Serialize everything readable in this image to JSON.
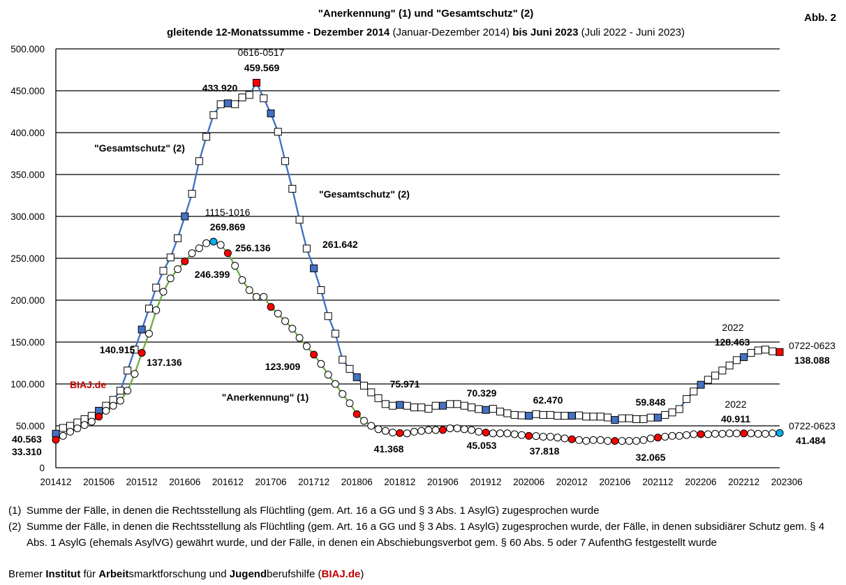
{
  "title_line1": "\"Anerkennung\" (1) und \"Gesamtschutz\" (2)",
  "title_line2_parts": [
    {
      "text": "gleitende 12-Monatssumme - Dezember 2014 ",
      "bold": true
    },
    {
      "text": "(Januar-Dezember 2014)",
      "bold": false
    },
    {
      "text": " bis Juni 2023 ",
      "bold": true
    },
    {
      "text": "(Juli 2022 - Juni 2023)",
      "bold": false
    }
  ],
  "figure_label": "Abb. 2",
  "brand_label": "BIAJ.de",
  "colors": {
    "gesamt_line": "#4472c4",
    "anerk_line": "#70ad47",
    "marker_blue": "#4472c4",
    "marker_red": "#ff0000",
    "marker_cyan": "#00b0f0",
    "brand_red": "#c00000"
  },
  "chart_data": {
    "type": "line",
    "ylim": [
      0,
      500000
    ],
    "ytick_labels": [
      "0",
      "50.000",
      "100.000",
      "150.000",
      "200.000",
      "250.000",
      "300.000",
      "350.000",
      "400.000",
      "450.000",
      "500.000"
    ],
    "x_tick_labels": [
      "201412",
      "201506",
      "201512",
      "201606",
      "201612",
      "201706",
      "201712",
      "201806",
      "201812",
      "201906",
      "201912",
      "202006",
      "202012",
      "202106",
      "202112",
      "202206",
      "202212",
      "202306"
    ],
    "x_start": "201412",
    "x_end": "202306",
    "series": [
      {
        "name": "\"Gesamtschutz\" (2)",
        "marker": "square",
        "values": [
          40563,
          47500,
          50000,
          54000,
          58000,
          62000,
          68000,
          74000,
          81000,
          92000,
          116000,
          140915,
          165000,
          190000,
          215000,
          235000,
          251000,
          274000,
          300000,
          327000,
          366000,
          395000,
          421000,
          433920,
          435000,
          434000,
          442000,
          445000,
          459569,
          441000,
          423000,
          401000,
          366000,
          333000,
          296000,
          261642,
          238000,
          212000,
          181000,
          160000,
          129000,
          118000,
          108000,
          98000,
          90000,
          83000,
          75971,
          74000,
          75000,
          74000,
          72000,
          72000,
          70329,
          74000,
          74000,
          76000,
          76000,
          74000,
          72000,
          70000,
          69000,
          70329,
          67000,
          65000,
          63000,
          62470,
          62000,
          64000,
          63000,
          63000,
          62000,
          62000,
          62000,
          62470,
          61000,
          61000,
          61000,
          60000,
          57000,
          59000,
          59000,
          58000,
          58000,
          59848,
          59848,
          63000,
          66000,
          70000,
          82000,
          91000,
          99000,
          105000,
          110000,
          116000,
          122000,
          128463,
          132000,
          137000,
          140000,
          141000,
          139000,
          138088
        ]
      },
      {
        "name": "\"Anerkennung\" (1)",
        "marker": "circle",
        "values": [
          33310,
          38000,
          43000,
          47000,
          51000,
          55000,
          61000,
          68000,
          74000,
          80000,
          92000,
          112000,
          137136,
          160000,
          188000,
          210000,
          226000,
          237000,
          246399,
          256000,
          262000,
          268000,
          269869,
          266000,
          256136,
          241000,
          224000,
          212000,
          204000,
          204000,
          192000,
          184000,
          175000,
          166000,
          155000,
          145000,
          135000,
          123909,
          111000,
          100000,
          88000,
          77000,
          64000,
          56000,
          50000,
          46000,
          44000,
          42000,
          41368,
          41000,
          43000,
          44000,
          45000,
          45000,
          45053,
          47000,
          47000,
          46000,
          45000,
          43000,
          42000,
          41000,
          41000,
          41000,
          40000,
          39000,
          38000,
          37818,
          37000,
          37000,
          36000,
          35000,
          34000,
          33000,
          32065,
          33000,
          33000,
          32000,
          32000,
          32000,
          32000,
          32065,
          33000,
          35000,
          36000,
          37000,
          38000,
          38000,
          39000,
          40000,
          40000,
          40000,
          40500,
          40500,
          41000,
          40911,
          41000,
          41000,
          40500,
          40500,
          41000,
          41484
        ]
      }
    ],
    "annotations": [
      {
        "text": "0616-0517",
        "bold": false
      },
      {
        "text": "459.569",
        "bold": true
      },
      {
        "text": "433.920",
        "bold": true
      },
      {
        "text": "\"Gesamtschutz\" (2)",
        "bold": true
      },
      {
        "text": "\"Gesamtschutz\" (2)",
        "bold": true
      },
      {
        "text": "1115-1016",
        "bold": false
      },
      {
        "text": "269.869",
        "bold": true
      },
      {
        "text": "256.136",
        "bold": true
      },
      {
        "text": "261.642",
        "bold": true
      },
      {
        "text": "246.399",
        "bold": true
      },
      {
        "text": "140.915",
        "bold": true
      },
      {
        "text": "137.136",
        "bold": true
      },
      {
        "text": "123.909",
        "bold": true
      },
      {
        "text": "\"Anerkennung\" (1)",
        "bold": true
      },
      {
        "text": "75.971",
        "bold": true
      },
      {
        "text": "70.329",
        "bold": true
      },
      {
        "text": "62.470",
        "bold": true
      },
      {
        "text": "59.848",
        "bold": true
      },
      {
        "text": "41.368",
        "bold": true
      },
      {
        "text": "45.053",
        "bold": true
      },
      {
        "text": "37.818",
        "bold": true
      },
      {
        "text": "32.065",
        "bold": true
      },
      {
        "text": "2022",
        "bold": false
      },
      {
        "text": "128.463",
        "bold": true
      },
      {
        "text": "2022",
        "bold": false
      },
      {
        "text": "40.911",
        "bold": true
      },
      {
        "text": "0722-0623",
        "bold": false
      },
      {
        "text": "138.088",
        "bold": true
      },
      {
        "text": "0722-0623",
        "bold": false
      },
      {
        "text": "41.484",
        "bold": true
      },
      {
        "text": "40.563",
        "bold": true
      },
      {
        "text": "33.310",
        "bold": true
      }
    ]
  },
  "footnotes": [
    {
      "num": "(1)",
      "text": "Summe der Fälle, in denen die Rechtsstellung als Flüchtling (gem. Art. 16 a GG und § 3 Abs. 1 AsylG) zugesprochen wurde"
    },
    {
      "num": "(2)",
      "text": "Summe der Fälle, in denen die Rechtsstellung als Flüchtling (gem. Art. 16 a GG und § 3 Abs. 1 AsylG) zugesprochen wurde, der Fälle, in denen subsidiärer Schutz gem. § 4 Abs. 1 AsylG (ehemals AsylVG) gewährt wurde, und der Fälle, in denen ein Abschiebungsverbot gem. § 60 Abs. 5 oder 7 AufenthG festgestellt wurde"
    }
  ],
  "credit_parts": [
    {
      "text": "Bremer ",
      "style": "n"
    },
    {
      "text": "Institut",
      "style": "b"
    },
    {
      "text": " für ",
      "style": "n"
    },
    {
      "text": "Arbeit",
      "style": "b"
    },
    {
      "text": "smarktforschung und ",
      "style": "n"
    },
    {
      "text": "Jugend",
      "style": "b"
    },
    {
      "text": "berufshilfe (",
      "style": "n"
    },
    {
      "text": "BIAJ.de",
      "style": "brand"
    },
    {
      "text": ")",
      "style": "n"
    }
  ]
}
